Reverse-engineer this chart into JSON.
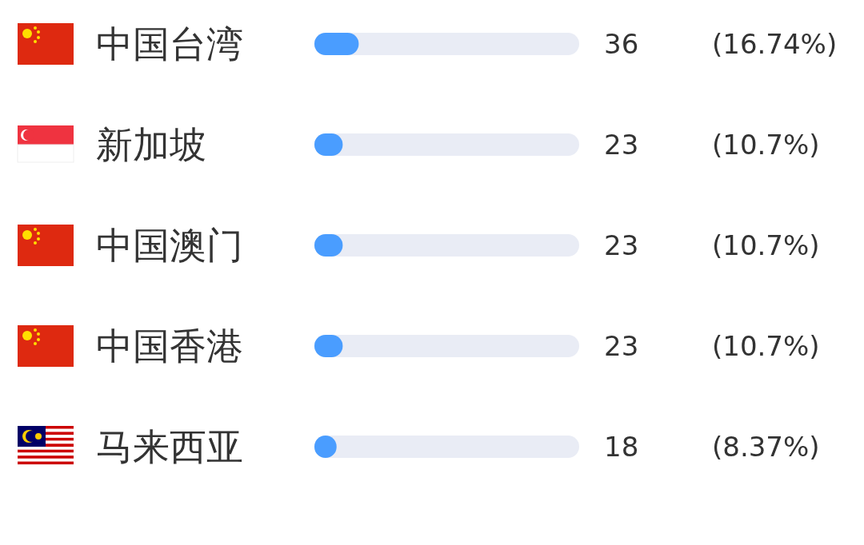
{
  "chart_data": {
    "type": "bar",
    "orientation": "horizontal",
    "categories": [
      "中国台湾",
      "新加坡",
      "中国澳门",
      "中国香港",
      "马来西亚"
    ],
    "values": [
      36,
      23,
      23,
      23,
      18
    ],
    "color": "#4a9dff",
    "xlim": [
      0,
      215
    ],
    "tick_labels": "y",
    "data_labels": true,
    "annotations": [
      "(16.74%)",
      "(10.7%)",
      "(10.7%)",
      "(10.7%)",
      "(8.37%)"
    ]
  }
}
